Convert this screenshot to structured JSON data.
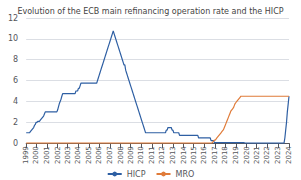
{
  "chart_data": {
    "type": "line",
    "title": "Evolution of the ECB main refinancing operation rate and the HICP",
    "categories": [
      "1999",
      null,
      null,
      null,
      null,
      null,
      null,
      null,
      null,
      null,
      null,
      null,
      "2000",
      null,
      null,
      null,
      null,
      null,
      null,
      null,
      null,
      null,
      null,
      null,
      null,
      "2001",
      null,
      null,
      null,
      null,
      null,
      null,
      null,
      null,
      null,
      null,
      null,
      null,
      "2002",
      null,
      null,
      null,
      null,
      null,
      null,
      null,
      null,
      null,
      null,
      null,
      "2003",
      null,
      null,
      null,
      null,
      null,
      null,
      null,
      null,
      null,
      null,
      null,
      null,
      "2004",
      null,
      null,
      null,
      null,
      null,
      null,
      null,
      null,
      null,
      null,
      null,
      null,
      "2005",
      null,
      null,
      null,
      null,
      null,
      null,
      null,
      null,
      null,
      null,
      null,
      "2006",
      null,
      null,
      null,
      null,
      null,
      null,
      null,
      null,
      null,
      null,
      null,
      null,
      "2007",
      null,
      null,
      null,
      null,
      null,
      null,
      null,
      null,
      null,
      null,
      null,
      null,
      "2008",
      null,
      null,
      null,
      null,
      null,
      null,
      null,
      null,
      null,
      null,
      null,
      "2009",
      null,
      null,
      null,
      null,
      null,
      null,
      null,
      null,
      null,
      null,
      null,
      null,
      "2010",
      null,
      null,
      null,
      null,
      null,
      null,
      null,
      null,
      null,
      null,
      null,
      null,
      "2011",
      null,
      null,
      null,
      null,
      null,
      null,
      null,
      null,
      null,
      null,
      null,
      "2012",
      null,
      null,
      null,
      null,
      null,
      null,
      null,
      null,
      null,
      null,
      null,
      null,
      "2013",
      null,
      null,
      null,
      null,
      null,
      null,
      null,
      null,
      null,
      null,
      null,
      null,
      "2014",
      null,
      null,
      null,
      null,
      null,
      null,
      null,
      null,
      null,
      null,
      null,
      "2015",
      null,
      null,
      null,
      null,
      null,
      null,
      null,
      null,
      null,
      null,
      null,
      null,
      "2016",
      null,
      null,
      null,
      null,
      null,
      null,
      null,
      null,
      null,
      null,
      null,
      null,
      "2017",
      null,
      null,
      null,
      null,
      null,
      null,
      null,
      null,
      null,
      null,
      null,
      "2018",
      null,
      null,
      null,
      null,
      null,
      null,
      null,
      null,
      null,
      null,
      null,
      null,
      "2019",
      null,
      null,
      null,
      null,
      null,
      null,
      null,
      null,
      null,
      null,
      null,
      null,
      "2020",
      null,
      null,
      null,
      null,
      null,
      null,
      null,
      null,
      null,
      null,
      null,
      "2021",
      null,
      null,
      null,
      null,
      null,
      null,
      null,
      null,
      null,
      null,
      null,
      null,
      "2022",
      null,
      null,
      null,
      null,
      null,
      null,
      null,
      null,
      null,
      null,
      null,
      null,
      "2023",
      null,
      null,
      null,
      null,
      null,
      null,
      null,
      null,
      null,
      null,
      null,
      null,
      "2024"
    ],
    "series": [
      {
        "name": "HICP",
        "color": "#2e5fa3",
        "values": [
          1.0,
          1.0,
          1.0,
          1.0,
          1.0,
          1.1,
          1.2,
          1.3,
          1.4,
          1.5,
          1.7,
          1.8,
          2.0,
          2.0,
          2.1,
          2.1,
          2.1,
          2.2,
          2.3,
          2.4,
          2.5,
          2.6,
          2.8,
          3.0,
          3.0,
          3.0,
          3.0,
          3.0,
          3.0,
          3.0,
          3.0,
          3.0,
          3.0,
          3.0,
          3.0,
          3.0,
          3.0,
          3.0,
          3.2,
          3.5,
          3.8,
          4.0,
          4.2,
          4.5,
          4.75,
          4.75,
          4.75,
          4.75,
          4.75,
          4.75,
          4.75,
          4.75,
          4.75,
          4.75,
          4.75,
          4.75,
          4.75,
          4.75,
          4.75,
          4.75,
          5.0,
          5.0,
          5.0,
          5.25,
          5.25,
          5.5,
          5.75,
          5.75,
          5.75,
          5.75,
          5.75,
          5.75,
          5.75,
          5.75,
          5.75,
          5.75,
          5.75,
          5.75,
          5.75,
          5.75,
          5.75,
          5.75,
          5.75,
          5.75,
          5.75,
          5.75,
          6.0,
          6.25,
          6.5,
          6.75,
          7.0,
          7.25,
          7.5,
          7.75,
          8.0,
          8.25,
          8.5,
          8.75,
          9.0,
          9.25,
          9.5,
          9.75,
          10.0,
          10.25,
          10.5,
          10.75,
          10.5,
          10.25,
          10.0,
          9.75,
          9.5,
          9.25,
          9.0,
          8.75,
          8.5,
          8.25,
          8.0,
          7.75,
          7.5,
          7.5,
          7.0,
          6.75,
          6.5,
          6.25,
          6.0,
          5.75,
          5.5,
          5.25,
          5.0,
          4.75,
          4.5,
          4.25,
          4.0,
          3.75,
          3.5,
          3.25,
          3.0,
          2.75,
          2.5,
          2.25,
          2.0,
          1.75,
          1.5,
          1.25,
          1.0,
          1.0,
          1.0,
          1.0,
          1.0,
          1.0,
          1.0,
          1.0,
          1.0,
          1.0,
          1.0,
          1.0,
          1.0,
          1.0,
          1.0,
          1.0,
          1.0,
          1.0,
          1.0,
          1.0,
          1.0,
          1.0,
          1.0,
          1.0,
          1.0,
          1.25,
          1.25,
          1.5,
          1.5,
          1.5,
          1.5,
          1.5,
          1.25,
          1.25,
          1.0,
          1.0,
          1.0,
          1.0,
          1.0,
          1.0,
          1.0,
          0.75,
          0.75,
          0.75,
          0.75,
          0.75,
          0.75,
          0.75,
          0.75,
          0.75,
          0.75,
          0.75,
          0.75,
          0.75,
          0.75,
          0.75,
          0.75,
          0.75,
          0.75,
          0.75,
          0.75,
          0.75,
          0.75,
          0.75,
          0.5,
          0.5,
          0.5,
          0.5,
          0.5,
          0.5,
          0.5,
          0.5,
          0.5,
          0.5,
          0.5,
          0.5,
          0.5,
          0.5,
          0.5,
          0.25,
          0.25,
          0.25,
          0.25,
          0.05,
          0.05,
          0.05,
          0.05,
          0.05,
          0.05,
          0.05,
          0.05,
          0.05,
          0.05,
          0.05,
          0.05,
          0.05,
          0.05,
          0.05,
          0.05,
          0.05,
          0.05,
          0.05,
          0.05,
          0.05,
          0.05,
          0.05,
          0.05,
          0.05,
          0.05,
          0.05,
          0.05,
          0.05,
          0.05,
          0.05,
          0.05,
          0.05,
          0.05,
          0.05,
          0.05,
          0.05,
          0.0,
          0.0,
          0.0,
          0.0,
          0.0,
          0.0,
          0.0,
          0.0,
          0.0,
          0.0,
          0.0,
          0.0,
          0.0,
          0.0,
          0.0,
          0.0,
          0.0,
          0.0,
          0.0,
          0.0,
          0.0,
          0.0,
          0.0,
          0.0,
          0.0,
          0.0,
          0.0,
          0.0,
          0.0,
          0.0,
          0.0,
          0.0,
          0.0,
          0.0,
          0.0,
          0.0,
          0.0,
          0.0,
          0.0,
          0.0,
          0.0,
          0.0,
          0.0,
          0.0,
          0.0,
          0.0,
          0.0,
          0.0,
          0.5,
          1.25,
          2.0,
          3.0,
          3.75,
          4.5
        ]
      },
      {
        "name": "MRO",
        "color": "#e07b39",
        "values": [
          0.0,
          0.0,
          0.0,
          0.0,
          0.0,
          0.0,
          0.0,
          0.0,
          0.0,
          0.0,
          0.0,
          0.0,
          0.0,
          0.0,
          0.0,
          0.0,
          0.0,
          0.0,
          0.0,
          0.0,
          0.0,
          0.0,
          0.0,
          0.0,
          0.0,
          0.0,
          0.0,
          0.0,
          0.0,
          0.0,
          0.0,
          0.0,
          0.0,
          0.0,
          0.0,
          0.0,
          0.0,
          0.0,
          0.0,
          0.0,
          0.0,
          0.0,
          0.0,
          0.0,
          0.0,
          0.0,
          0.0,
          0.0,
          0.0,
          0.0,
          0.0,
          0.0,
          0.0,
          0.0,
          0.0,
          0.0,
          0.0,
          0.0,
          0.0,
          0.0,
          0.0,
          0.0,
          0.0,
          0.0,
          0.0,
          0.0,
          0.0,
          0.0,
          0.0,
          0.0,
          0.0,
          0.0,
          0.0,
          0.0,
          0.0,
          0.0,
          0.0,
          0.0,
          0.0,
          0.0,
          0.0,
          0.0,
          0.0,
          0.0,
          0.0,
          0.0,
          0.0,
          0.0,
          0.0,
          0.0,
          0.0,
          0.0,
          0.0,
          0.0,
          0.0,
          0.0,
          0.0,
          0.0,
          0.0,
          0.0,
          0.0,
          0.0,
          0.0,
          0.0,
          0.0,
          0.0,
          0.0,
          0.0,
          0.0,
          0.0,
          0.0,
          0.0,
          0.0,
          0.0,
          0.0,
          0.0,
          0.0,
          0.0,
          0.0,
          0.0,
          0.0,
          0.0,
          0.0,
          0.0,
          0.0,
          0.0,
          0.0,
          0.0,
          0.0,
          0.0,
          0.0,
          0.0,
          0.0,
          0.0,
          0.0,
          0.0,
          0.0,
          0.0,
          0.0,
          0.0,
          0.0,
          0.0,
          0.0,
          0.0,
          0.0,
          0.0,
          0.0,
          0.0,
          0.0,
          0.0,
          0.0,
          0.0,
          0.0,
          0.0,
          0.0,
          0.0,
          0.0,
          0.0,
          0.0,
          0.0,
          0.0,
          0.0,
          0.0,
          0.0,
          0.0,
          0.0,
          0.0,
          0.0,
          0.0,
          0.0,
          0.0,
          0.0,
          0.0,
          0.0,
          0.0,
          0.0,
          0.0,
          0.0,
          0.0,
          0.0,
          0.0,
          0.0,
          0.0,
          0.0,
          0.0,
          0.0,
          0.0,
          0.0,
          0.0,
          0.0,
          0.0,
          0.0,
          0.0,
          0.0,
          0.0,
          0.0,
          0.0,
          0.0,
          0.0,
          0.0,
          0.0,
          0.0,
          0.0,
          0.0,
          0.0,
          0.0,
          0.0,
          0.0,
          0.0,
          0.0,
          0.0,
          0.0,
          0.0,
          0.0,
          0.0,
          0.0,
          0.0,
          0.0,
          0.0,
          0.0,
          0.0,
          0.0,
          0.0,
          0.0,
          0.0,
          0.1,
          0.2,
          0.3,
          0.3,
          0.4,
          0.5,
          0.6,
          0.7,
          0.8,
          0.9,
          1.0,
          1.1,
          1.2,
          1.3,
          1.5,
          1.7,
          1.9,
          2.1,
          2.3,
          2.5,
          2.7,
          2.9,
          3.1,
          3.2,
          3.3,
          3.4,
          3.6,
          3.8,
          3.9,
          4.0,
          4.1,
          4.2,
          4.3,
          4.4,
          4.5,
          4.5,
          4.5,
          4.5,
          4.5,
          4.5,
          4.5,
          4.5,
          4.5,
          4.5,
          4.5,
          4.5,
          4.5,
          4.5,
          4.5,
          4.5,
          4.5,
          4.5,
          4.5,
          4.5,
          4.5,
          4.5,
          4.5,
          4.5,
          4.5,
          4.5,
          4.5,
          4.5,
          4.5,
          4.5,
          4.5,
          4.5,
          4.5,
          4.5,
          4.5,
          4.5,
          4.5,
          4.5,
          4.5,
          4.5,
          4.5,
          4.5,
          4.5,
          4.5,
          4.5,
          4.5,
          4.5,
          4.5,
          4.5,
          4.5,
          4.5,
          4.5,
          4.5,
          4.5,
          4.5,
          4.5,
          4.5,
          4.5,
          4.5
        ]
      }
    ],
    "ylim": [
      0,
      12
    ],
    "yticks": [
      0,
      2,
      4,
      6,
      8,
      10,
      12
    ],
    "grid": true,
    "legend": "bottom"
  }
}
